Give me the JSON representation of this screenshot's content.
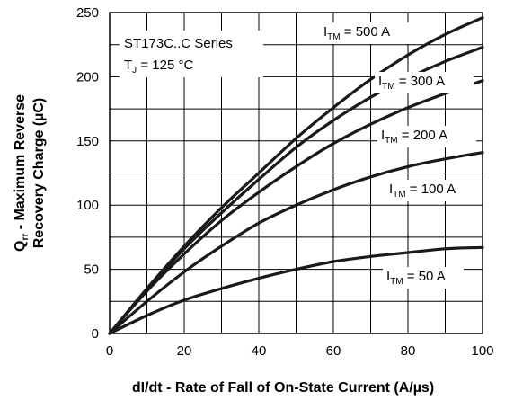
{
  "chart_data": {
    "type": "line",
    "annotations": {
      "series_name": "ST173C..C Series",
      "condition_main": "T",
      "condition_sub": "J",
      "condition_rest": " = 125 °C"
    },
    "xlabel": "dI/dt - Rate of Fall of On-State Current (A/µs)",
    "ylabel": {
      "line1_q": "Q",
      "line1_sub": "rr",
      "line1_rest": " - Maximum Reverse",
      "line2": "Recovery Charge (µC)"
    },
    "xlim": [
      0,
      100
    ],
    "ylim": [
      0,
      250
    ],
    "xticks": [
      0,
      20,
      40,
      60,
      80,
      100
    ],
    "yticks": [
      0,
      50,
      100,
      150,
      200,
      250
    ],
    "xtick_labels": [
      "0",
      "20",
      "40",
      "60",
      "80",
      "100"
    ],
    "ytick_labels": [
      "0",
      "50",
      "100",
      "150",
      "200",
      "250"
    ],
    "grid": true,
    "series": [
      {
        "label_main": "I",
        "label_sub": "TM",
        "label_rest": " = 500 A",
        "x": [
          0,
          10,
          20,
          30,
          40,
          50,
          60,
          70,
          80,
          90,
          100
        ],
        "y": [
          0,
          35,
          68,
          98,
          125,
          152,
          176,
          198,
          217,
          233,
          246
        ]
      },
      {
        "label_main": "I",
        "label_sub": "TM",
        "label_rest": " = 300 A",
        "x": [
          0,
          10,
          20,
          30,
          40,
          50,
          60,
          70,
          80,
          90,
          100
        ],
        "y": [
          0,
          34,
          66,
          94,
          120,
          145,
          166,
          184,
          199,
          212,
          223
        ]
      },
      {
        "label_main": "I",
        "label_sub": "TM",
        "label_rest": " = 200 A",
        "x": [
          0,
          10,
          20,
          30,
          40,
          50,
          60,
          70,
          80,
          90,
          100
        ],
        "y": [
          0,
          33,
          62,
          88,
          110,
          130,
          148,
          163,
          176,
          187,
          197
        ]
      },
      {
        "label_main": "I",
        "label_sub": "TM",
        "label_rest": " = 100 A",
        "x": [
          0,
          10,
          20,
          30,
          40,
          50,
          60,
          70,
          80,
          90,
          100
        ],
        "y": [
          0,
          25,
          48,
          68,
          86,
          100,
          112,
          122,
          130,
          136,
          141
        ]
      },
      {
        "label_main": "I",
        "label_sub": "TM",
        "label_rest": " = 50 A",
        "x": [
          0,
          10,
          20,
          30,
          40,
          50,
          60,
          70,
          80,
          90,
          100
        ],
        "y": [
          0,
          14,
          26,
          35,
          43,
          50,
          56,
          60,
          63,
          66,
          67
        ]
      }
    ]
  }
}
